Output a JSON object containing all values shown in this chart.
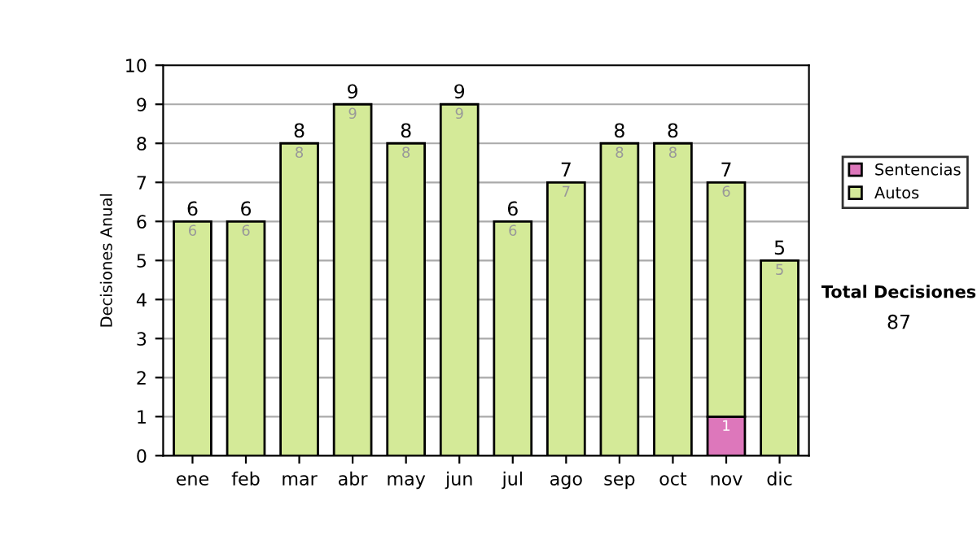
{
  "chart_data": {
    "type": "bar",
    "stacked": true,
    "ylabel": "Decisiones Anual",
    "categories": [
      "ene",
      "feb",
      "mar",
      "abr",
      "may",
      "jun",
      "jul",
      "ago",
      "sep",
      "oct",
      "nov",
      "dic"
    ],
    "series": [
      {
        "name": "Sentencias",
        "color": "#dd77bb",
        "values": [
          null,
          null,
          null,
          null,
          null,
          null,
          null,
          null,
          null,
          null,
          1,
          null
        ]
      },
      {
        "name": "Autos",
        "color": "#d4ea98",
        "values": [
          6,
          6,
          8,
          9,
          8,
          9,
          6,
          7,
          8,
          8,
          6,
          5
        ]
      }
    ],
    "data_labels": true,
    "totals": [
      "6",
      "6",
      "8",
      "9",
      "8",
      "9",
      "6",
      "7",
      "8",
      "8",
      "7",
      "5"
    ],
    "ylim": [
      0,
      10
    ],
    "yticks": [
      0,
      1,
      2,
      3,
      4,
      5,
      6,
      7,
      8,
      9,
      10
    ],
    "grid": "y",
    "legend": "right",
    "annotations": [
      "Total Decisiones",
      "87"
    ]
  }
}
